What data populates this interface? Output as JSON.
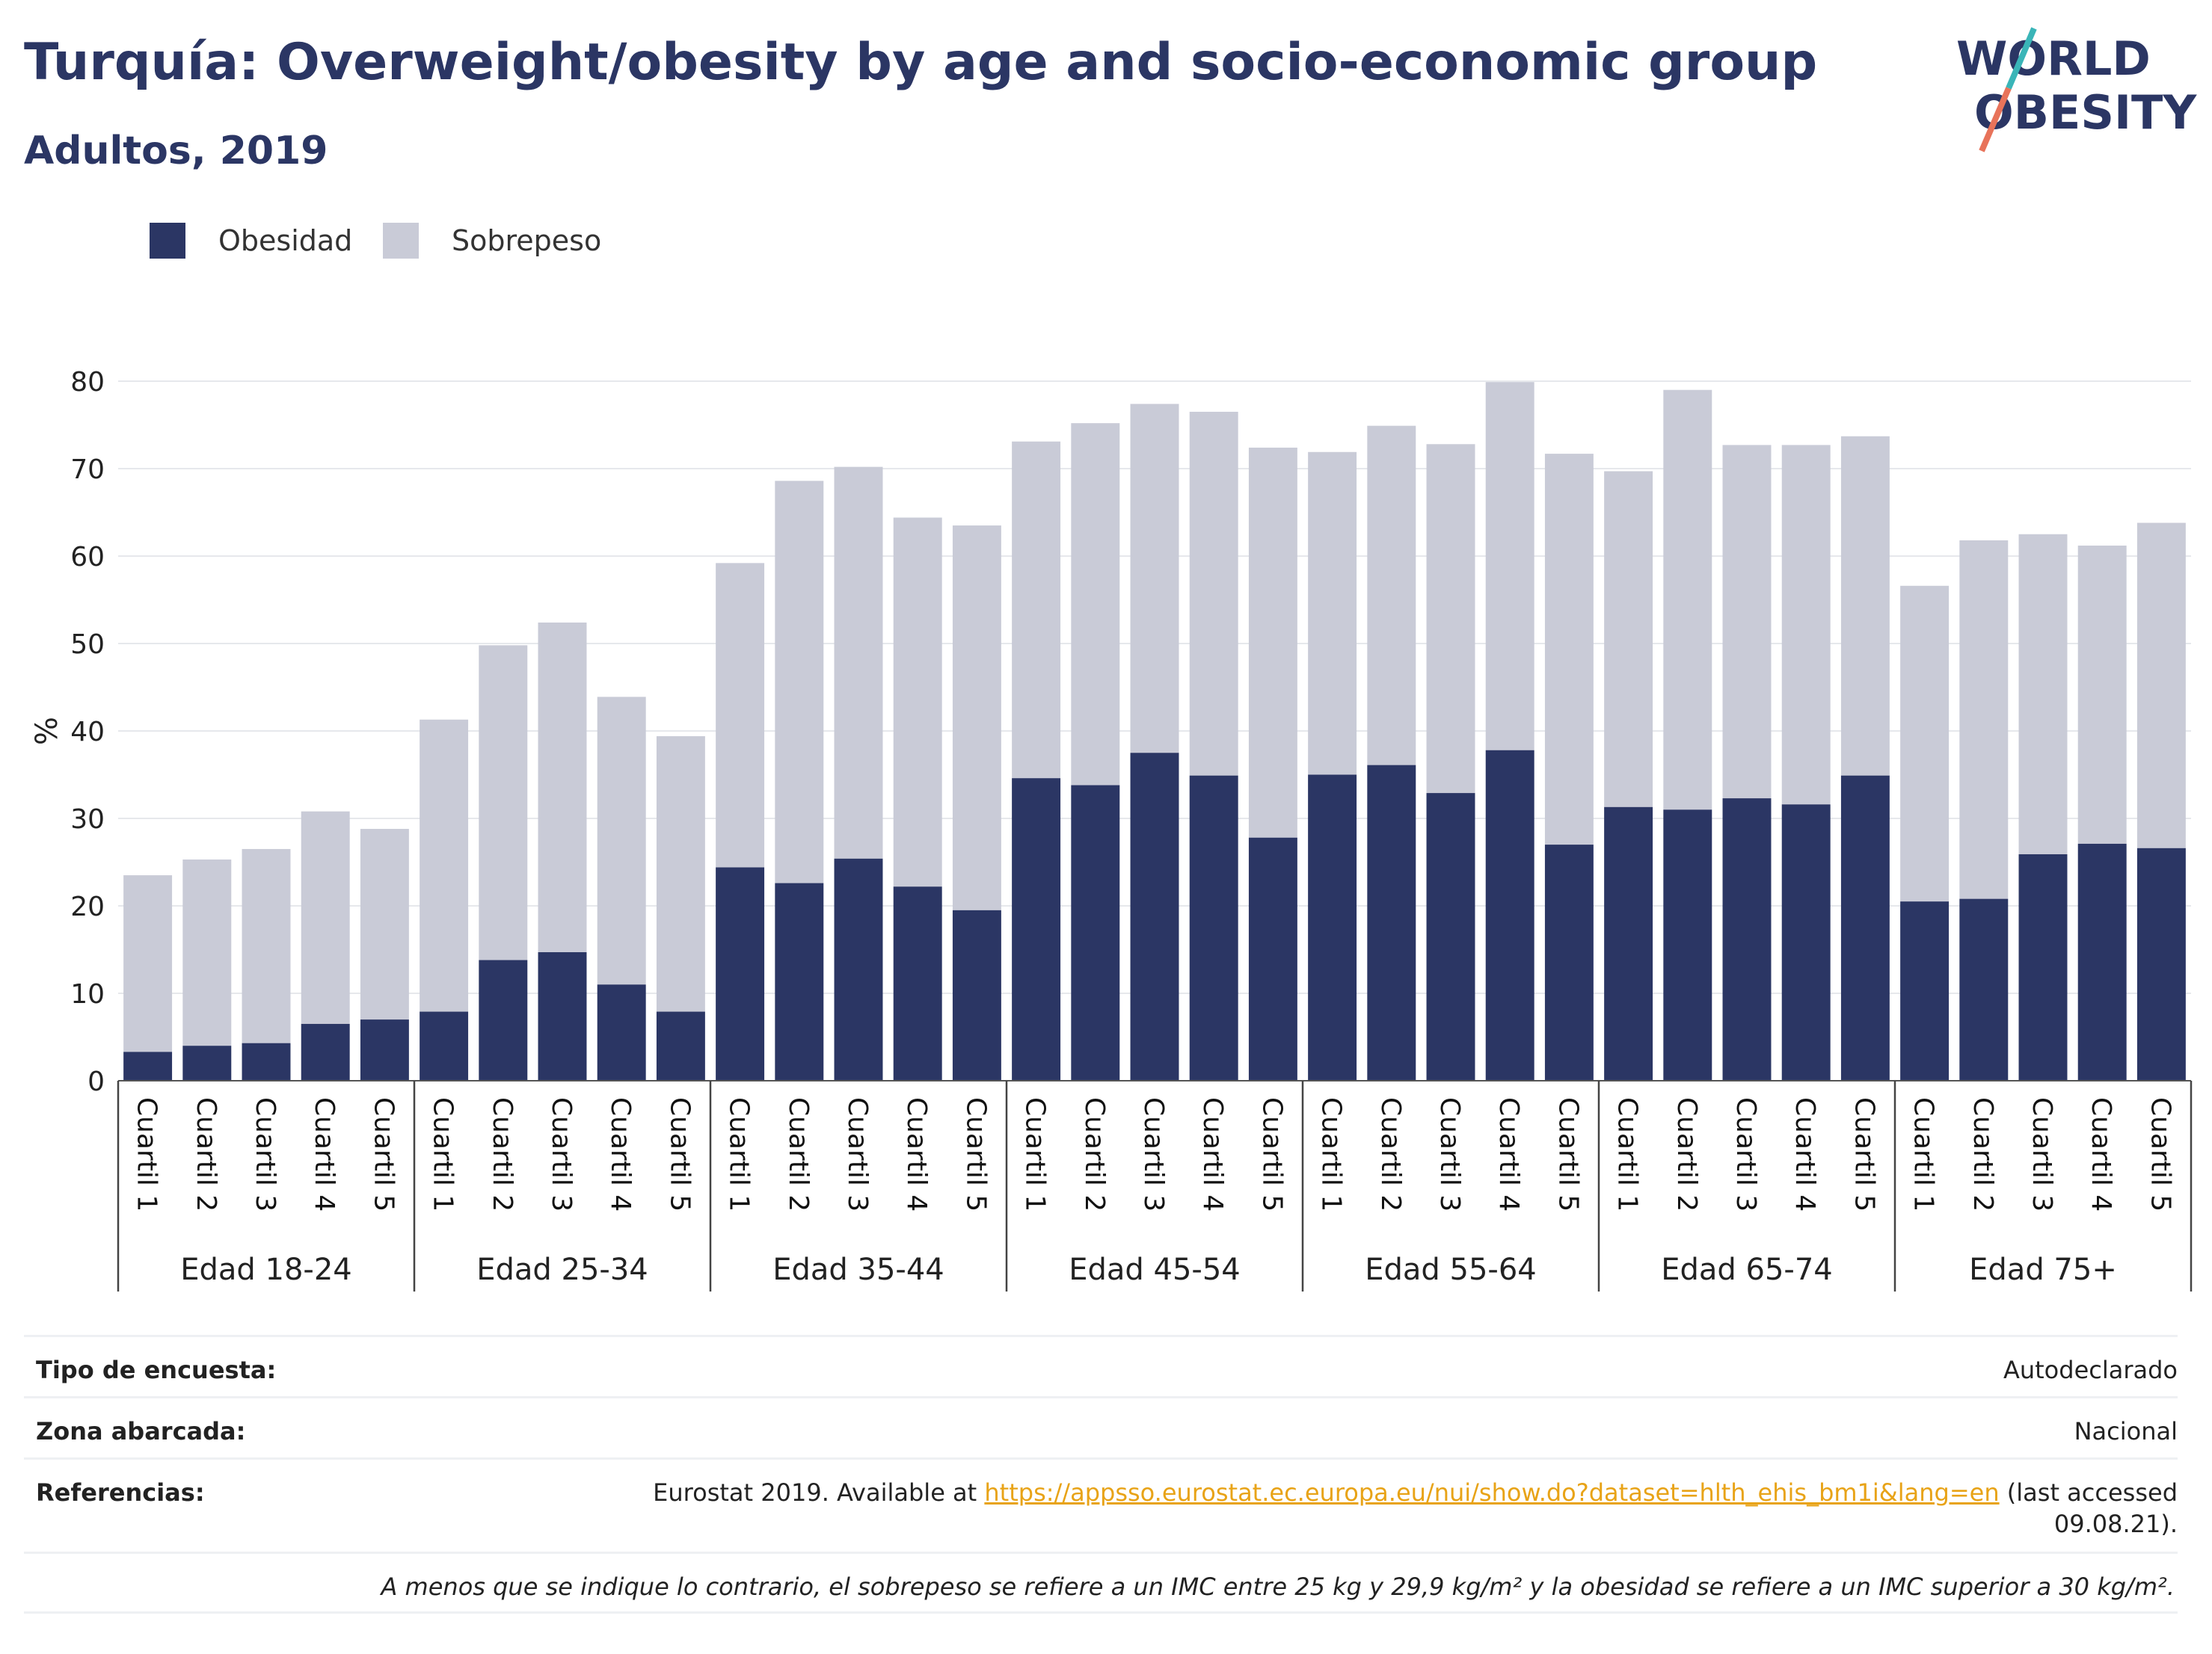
{
  "header": {
    "title": "Turquía: Overweight/obesity by age and socio-economic group",
    "subtitle": "Adultos, 2019"
  },
  "logo": {
    "line1": "WORLD",
    "line2": "OBESITY",
    "accent_colors": [
      "#3ab5b8",
      "#e8735a"
    ]
  },
  "colors": {
    "obesidad": "#2b3664",
    "sobrepeso": "#c9cbd7",
    "text": "#2b3664",
    "link": "#e8a317"
  },
  "legend": {
    "obesidad": "Obesidad",
    "sobrepeso": "Sobrepeso"
  },
  "chart_data": {
    "type": "bar",
    "stacked": true,
    "ylabel": "%",
    "ylim": [
      0,
      80
    ],
    "yticks": [
      0,
      10,
      20,
      30,
      40,
      50,
      60,
      70,
      80
    ],
    "grid": true,
    "legend_position": "top-left",
    "groups": [
      "Edad 18-24",
      "Edad 25-34",
      "Edad 35-44",
      "Edad 45-54",
      "Edad 55-64",
      "Edad 65-74",
      "Edad 75+"
    ],
    "subcategories": [
      "Cuartil 1",
      "Cuartil 2",
      "Cuartil 3",
      "Cuartil 4",
      "Cuartil 5"
    ],
    "series": [
      {
        "name": "Obesidad",
        "values": [
          3.3,
          4.0,
          4.3,
          6.5,
          7.0,
          7.9,
          13.8,
          14.7,
          11.0,
          7.9,
          24.4,
          22.6,
          25.4,
          22.2,
          19.5,
          34.6,
          33.8,
          37.5,
          34.9,
          27.8,
          35.0,
          36.1,
          32.9,
          37.8,
          27.0,
          31.3,
          31.0,
          32.3,
          31.6,
          34.9,
          20.5,
          20.8,
          25.9,
          27.1,
          26.6
        ]
      },
      {
        "name": "Sobrepeso",
        "values": [
          20.2,
          21.3,
          22.2,
          24.3,
          21.8,
          33.4,
          36.0,
          37.7,
          32.9,
          31.5,
          34.8,
          46.0,
          44.8,
          42.2,
          44.0,
          38.5,
          41.4,
          39.9,
          41.6,
          44.6,
          36.9,
          38.8,
          39.9,
          42.1,
          44.7,
          38.4,
          48.0,
          40.4,
          41.1,
          38.8,
          36.1,
          41.0,
          36.6,
          34.1,
          37.2
        ]
      }
    ]
  },
  "info": {
    "survey_key": "Tipo de encuesta:",
    "survey_val": "Autodeclarado",
    "zone_key": "Zona abarcada:",
    "zone_val": "Nacional",
    "refs_key": "Referencias:",
    "refs_prefix": "Eurostat 2019. Available at ",
    "refs_link": "https://appsso.eurostat.ec.europa.eu/nui/show.do?dataset=hlth_ehis_bm1i&lang=en",
    "refs_suffix": " (last accessed",
    "refs_line2": "09.08.21).",
    "note": "A menos que se indique lo contrario, el sobrepeso se refiere a un IMC entre 25 kg y 29,9 kg/m² y la obesidad se refiere a un IMC superior a 30 kg/m²."
  }
}
